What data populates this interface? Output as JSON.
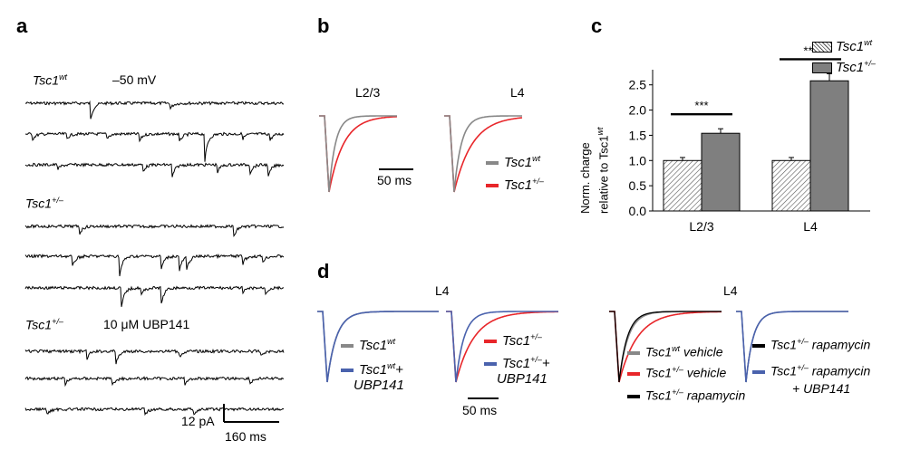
{
  "panel_labels": {
    "a": "a",
    "b": "b",
    "c": "c",
    "d": "d"
  },
  "colors": {
    "wt": "#888888",
    "het": "#e8262a",
    "ubp": "#4a62ad",
    "rapa": "#000000",
    "bar_wt": "#ffffff",
    "bar_het": "#7f7f7f"
  },
  "panel_a": {
    "cond1_main": "Tsc1",
    "cond1_sup": "wt",
    "voltage": "–50 mV",
    "cond2_main": "Tsc1",
    "cond2_sup": "+/–",
    "cond3_main": "Tsc1",
    "cond3_sup": "+/–",
    "drug": "10 μM UBP141",
    "scale_y": "12 pA",
    "scale_x": "160 ms"
  },
  "panel_b": {
    "left_title": "L2/3",
    "right_title": "L4",
    "scale_x": "50 ms",
    "legend": [
      {
        "main": "Tsc1",
        "sup": "wt",
        "color": "wt"
      },
      {
        "main": "Tsc1",
        "sup": "+/–",
        "color": "het"
      }
    ]
  },
  "chart_data": {
    "type": "bar",
    "categories": [
      "L2/3",
      "L4"
    ],
    "series": [
      {
        "name": "Tsc1wt",
        "values": [
          1.0,
          1.0
        ],
        "errors": [
          0.06,
          0.06
        ]
      },
      {
        "name": "Tsc1+/–",
        "values": [
          1.54,
          2.58
        ],
        "errors": [
          0.09,
          0.14
        ]
      }
    ],
    "ylabel_line1": "Norm. charge",
    "ylabel_line2_main": "relative to Tsc1",
    "ylabel_line2_sup": "wt",
    "ylim": [
      0,
      2.8
    ],
    "yticks": [
      "0.0",
      "0.5",
      "1.0",
      "1.5",
      "2.0",
      "2.5"
    ],
    "significance": [
      "***",
      "***"
    ],
    "legend": [
      {
        "main": "Tsc1",
        "sup": "wt"
      },
      {
        "main": "Tsc1",
        "sup": "+/–"
      }
    ],
    "legend_position": "top-right"
  },
  "panel_d": {
    "left_title": "L4",
    "right_title": "L4",
    "scale_x": "50 ms",
    "legend1": [
      {
        "main": "Tsc1",
        "sup": "wt",
        "suffix": "",
        "line2": "",
        "color": "wt"
      },
      {
        "main": "Tsc1",
        "sup": "wt",
        "suffix": "+",
        "line2": "UBP141",
        "color": "ubp"
      }
    ],
    "legend2": [
      {
        "main": "Tsc1",
        "sup": "+/–",
        "suffix": "",
        "line2": "",
        "color": "het"
      },
      {
        "main": "Tsc1",
        "sup": "+/–",
        "suffix": "+",
        "line2": "UBP141",
        "color": "ubp"
      }
    ],
    "legend3": [
      {
        "main": "Tsc1",
        "sup": "wt",
        "suffix": " vehicle",
        "color": "wt"
      },
      {
        "main": "Tsc1",
        "sup": "+/–",
        "suffix": " vehicle",
        "color": "het"
      },
      {
        "main": "Tsc1",
        "sup": "+/–",
        "suffix": " rapamycin",
        "color": "rapa"
      }
    ],
    "legend4": [
      {
        "main": "Tsc1",
        "sup": "+/–",
        "suffix": " rapamycin",
        "line2": "",
        "color": "rapa"
      },
      {
        "main": "Tsc1",
        "sup": "+/–",
        "suffix": " rapamycin",
        "line2": "+ UBP141",
        "color": "ubp"
      }
    ]
  }
}
